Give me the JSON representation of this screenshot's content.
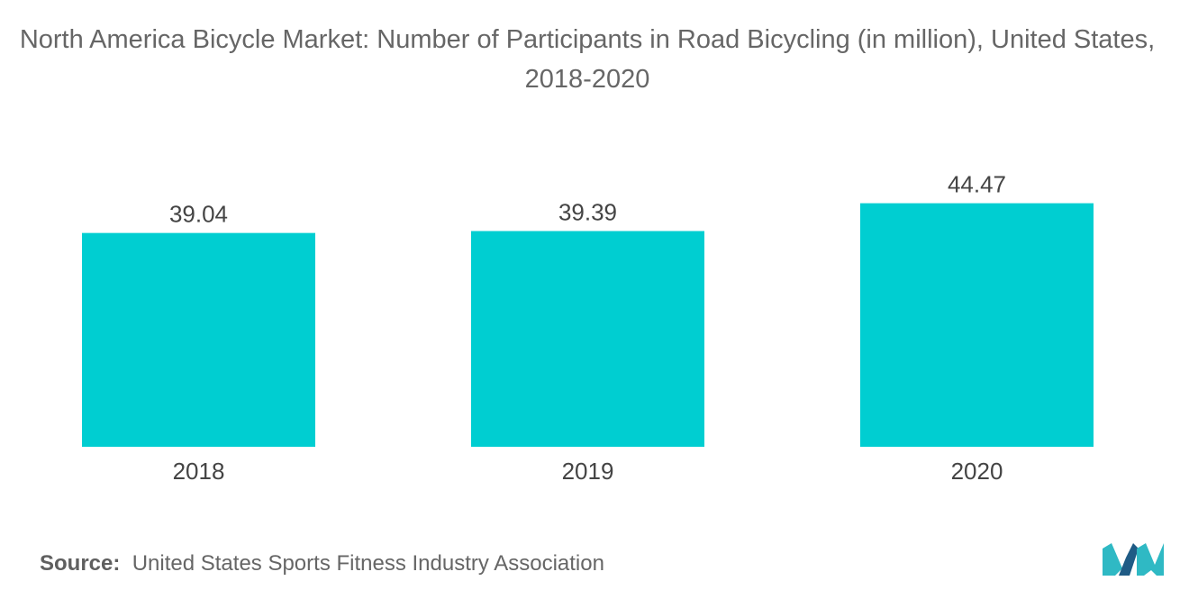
{
  "chart_data": {
    "type": "bar",
    "title": "North America Bicycle Market: Number of Participants in Road Bicycling (in million), United States, 2018-2020",
    "categories": [
      "2018",
      "2019",
      "2020"
    ],
    "values": [
      39.04,
      39.39,
      44.47
    ],
    "value_labels": [
      "39.04",
      "39.39",
      "44.47"
    ],
    "xlabel": "",
    "ylabel": "",
    "ylim": [
      0,
      46.5
    ],
    "grid": false,
    "legend": "none",
    "bar_color": "#00CED1"
  },
  "source": {
    "label": "Source:",
    "text": "United States Sports Fitness Industry Association"
  },
  "colors": {
    "text": "#666666",
    "logo_dark": "#1F5B85",
    "logo_teal": "#2FB9C4"
  },
  "logo": {
    "icon": "mordor-intelligence-logo-icon"
  }
}
